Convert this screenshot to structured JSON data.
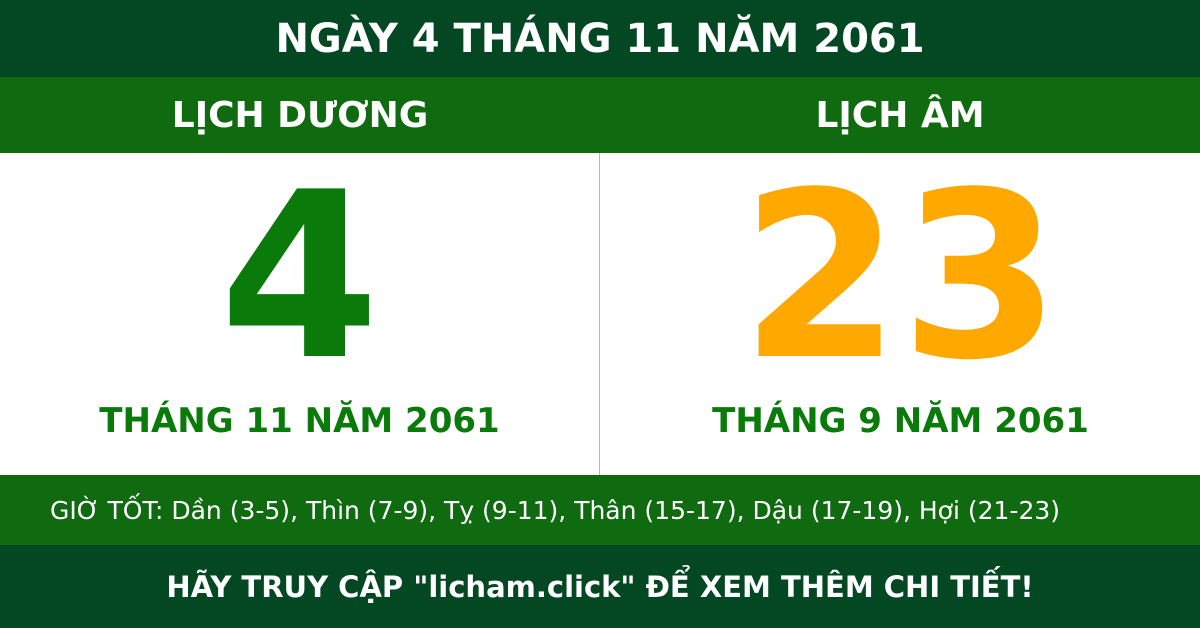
{
  "title": "NGÀY 4 THÁNG 11 NĂM 2061",
  "solar": {
    "header": "LỊCH DƯƠNG",
    "day": "4",
    "month_year": "THÁNG 11 NĂM 2061"
  },
  "lunar": {
    "header": "LỊCH ÂM",
    "day": "23",
    "month_year": "THÁNG 9 NĂM 2061"
  },
  "good_hours": "GIỜ TỐT: Dần (3-5), Thìn (7-9), Tỵ (9-11), Thân (15-17), Dậu (17-19), Hợi (21-23)",
  "footer": "HÃY TRUY CẬP \"licham.click\" ĐỂ XEM THÊM CHI TIẾT!",
  "colors": {
    "dark_green": "#034723",
    "green": "#0f6a10",
    "solar_day": "#0a7a0a",
    "lunar_day": "#ffa800"
  }
}
